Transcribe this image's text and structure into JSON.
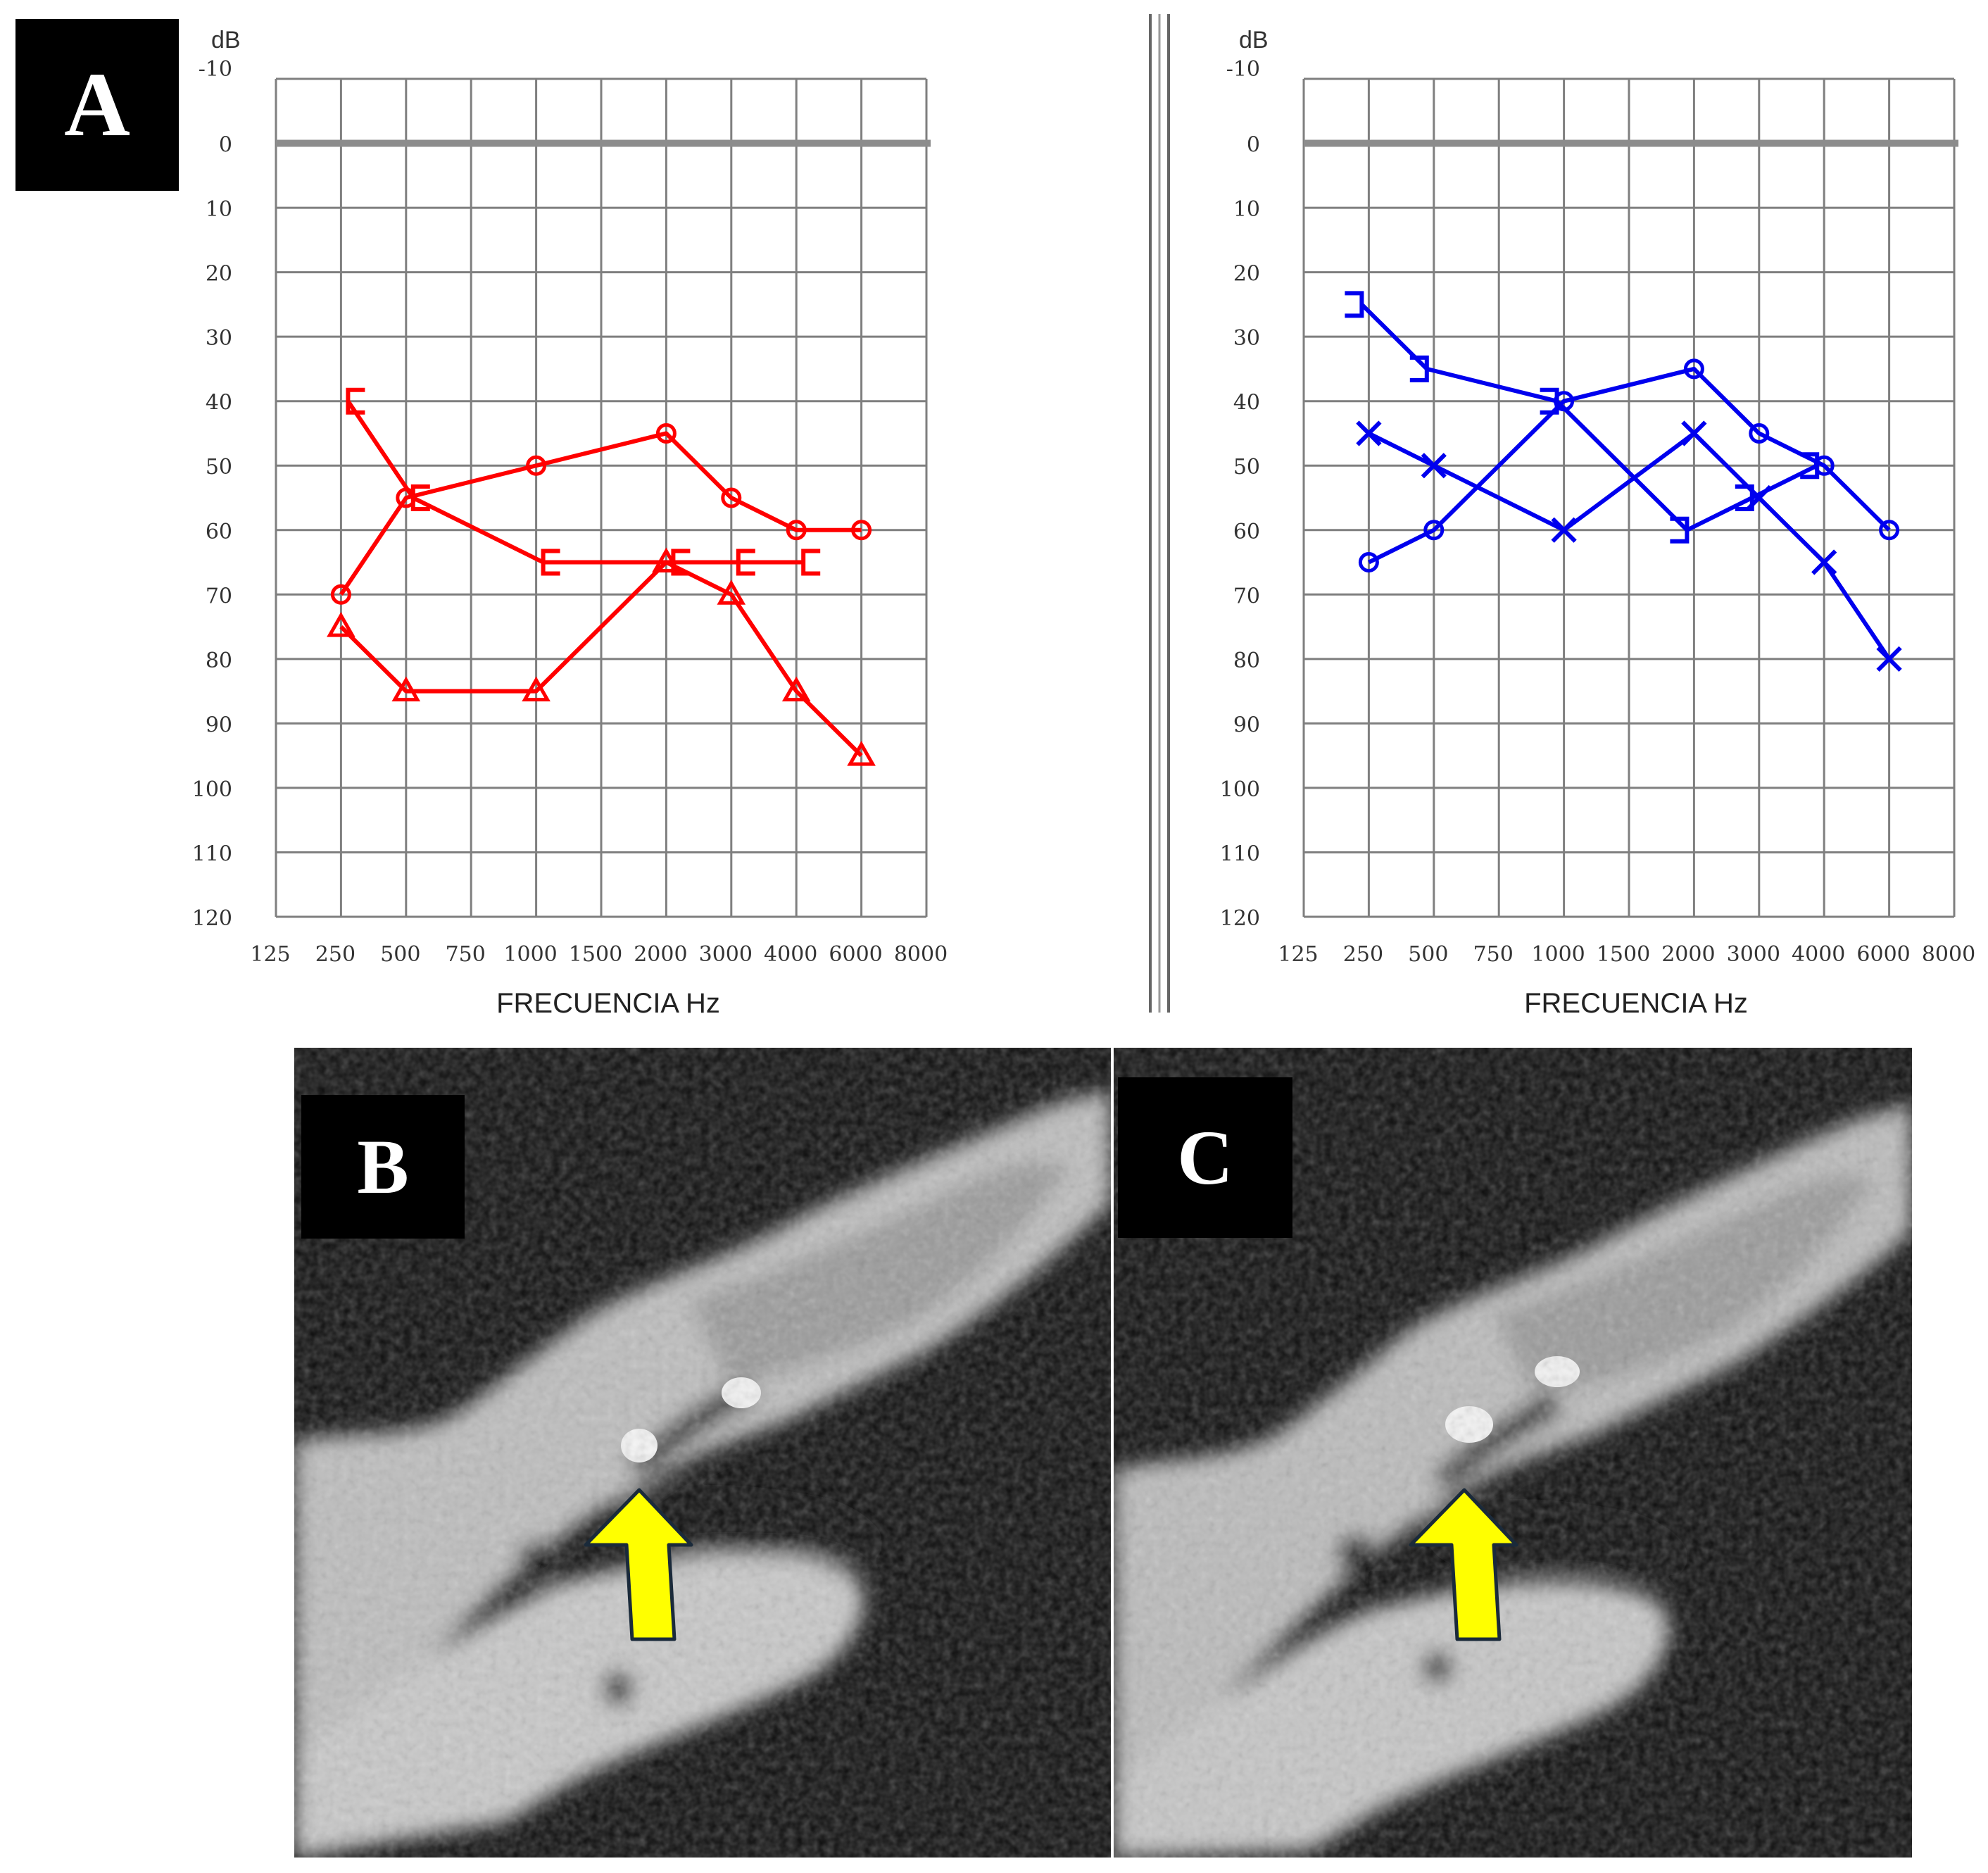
{
  "panels": {
    "a": "A",
    "b": "B",
    "c": "C"
  },
  "colors": {
    "right_ear": "#ff0000",
    "left_ear": "#0000ee",
    "grid": "#7f7f7f",
    "zero_line": "#8c8c8c",
    "arrow_fill": "#ffff00",
    "arrow_stroke": "#1a2a3a"
  },
  "chart_data": [
    {
      "type": "line",
      "panel": "A",
      "title": "",
      "y_unit": "dB",
      "xlabel": "FRECUENCIA Hz",
      "x_tick_labels": [
        "125",
        "250",
        "500",
        "750",
        "1000",
        "1500",
        "2000",
        "3000",
        "4000",
        "6000",
        "8000"
      ],
      "y_ticks": [
        -10,
        0,
        10,
        20,
        30,
        40,
        50,
        60,
        70,
        80,
        90,
        100,
        110,
        120
      ],
      "ylim": [
        120,
        -10
      ],
      "y_inverted": true,
      "grid": true,
      "color": "#ff0000",
      "series": [
        {
          "marker": "circle",
          "x": [
            "250",
            "500",
            "1000",
            "2000",
            "3000",
            "4000",
            "6000"
          ],
          "values": [
            70,
            55,
            50,
            45,
            55,
            60,
            60
          ]
        },
        {
          "marker": "triangle",
          "x": [
            "250",
            "500",
            "1000",
            "2000",
            "3000",
            "4000",
            "6000"
          ],
          "values": [
            75,
            85,
            85,
            65,
            70,
            85,
            95
          ]
        },
        {
          "marker": "bracket-open-right",
          "x": [
            "250",
            "500",
            "1000",
            "2000",
            "3000",
            "4000"
          ],
          "values": [
            40,
            55,
            65,
            65,
            65,
            65
          ]
        }
      ]
    },
    {
      "type": "line",
      "panel": "A",
      "title": "",
      "y_unit": "dB",
      "xlabel": "FRECUENCIA Hz",
      "x_tick_labels": [
        "125",
        "250",
        "500",
        "750",
        "1000",
        "1500",
        "2000",
        "3000",
        "4000",
        "6000",
        "8000"
      ],
      "y_ticks": [
        -10,
        0,
        10,
        20,
        30,
        40,
        50,
        60,
        70,
        80,
        90,
        100,
        110,
        120
      ],
      "ylim": [
        120,
        -10
      ],
      "y_inverted": true,
      "grid": true,
      "color": "#0000ee",
      "series": [
        {
          "marker": "circle",
          "x": [
            "250",
            "500",
            "1000",
            "2000",
            "3000",
            "4000",
            "6000"
          ],
          "values": [
            65,
            60,
            40,
            35,
            45,
            50,
            60
          ]
        },
        {
          "marker": "cross",
          "x": [
            "250",
            "500",
            "1000",
            "2000",
            "3000",
            "4000",
            "6000"
          ],
          "values": [
            45,
            50,
            60,
            45,
            55,
            65,
            80
          ]
        },
        {
          "marker": "bracket-open-left",
          "x": [
            "250",
            "500",
            "1000",
            "2000",
            "3000",
            "4000"
          ],
          "values": [
            25,
            35,
            40,
            60,
            55,
            50
          ]
        }
      ]
    }
  ]
}
